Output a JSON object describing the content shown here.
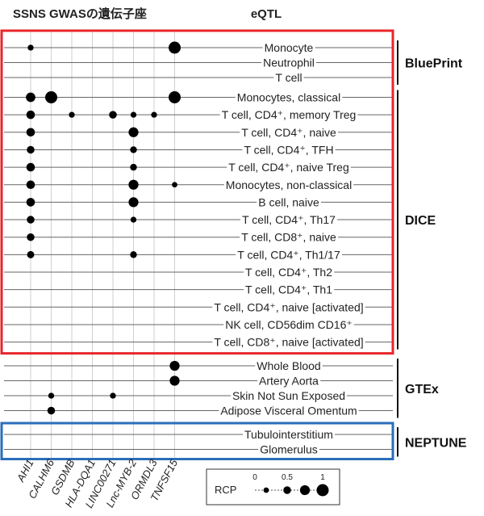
{
  "header": {
    "left_title": "SSNS GWASの遺伝子座",
    "right_title": "eQTL"
  },
  "chart_data": {
    "type": "dot-matrix",
    "genes": [
      "AHI1",
      "CALHM6",
      "GSDMB",
      "HLA-DQA1",
      "LINC00271",
      "Lnc-MYB-2",
      "ORMDL3",
      "TNFSF15"
    ],
    "groups": [
      {
        "name": "BluePrint",
        "rows": [
          {
            "label": "Monocyte",
            "values": [
              0.3,
              0,
              0,
              0,
              0,
              0,
              0,
              1.0
            ]
          },
          {
            "label": "Neutrophil",
            "values": [
              0,
              0,
              0,
              0,
              0,
              0,
              0,
              0
            ]
          },
          {
            "label": "T cell",
            "values": [
              0,
              0,
              0,
              0,
              0,
              0,
              0,
              0
            ]
          }
        ]
      },
      {
        "name": "DICE",
        "rows": [
          {
            "label": "Monocytes, classical",
            "values": [
              0.7,
              1.0,
              0,
              0,
              0,
              0,
              0,
              1.0
            ]
          },
          {
            "label": "T cell, CD4⁺, memory Treg",
            "values": [
              0.6,
              0,
              0.3,
              0,
              0.5,
              0.3,
              0.3,
              0
            ]
          },
          {
            "label": "T cell, CD4⁺, naive",
            "values": [
              0.6,
              0,
              0,
              0,
              0,
              0.75,
              0,
              0
            ]
          },
          {
            "label": "T cell, CD4⁺, TFH",
            "values": [
              0.5,
              0,
              0,
              0,
              0,
              0.4,
              0,
              0
            ]
          },
          {
            "label": "T cell, CD4⁺, naive Treg",
            "values": [
              0.6,
              0,
              0,
              0,
              0,
              0.4,
              0,
              0
            ]
          },
          {
            "label": "Monocytes, non-classical",
            "values": [
              0.6,
              0,
              0,
              0,
              0,
              0.75,
              0,
              0.25
            ]
          },
          {
            "label": "B cell, naive",
            "values": [
              0.6,
              0,
              0,
              0,
              0,
              0.75,
              0,
              0
            ]
          },
          {
            "label": "T cell, CD4⁺, Th17",
            "values": [
              0.5,
              0,
              0,
              0,
              0,
              0.3,
              0,
              0
            ]
          },
          {
            "label": "T cell, CD8⁺, naive",
            "values": [
              0.5,
              0,
              0,
              0,
              0,
              0,
              0,
              0
            ]
          },
          {
            "label": "T cell, CD4⁺, Th1/17",
            "values": [
              0.45,
              0,
              0,
              0,
              0,
              0.4,
              0,
              0
            ]
          },
          {
            "label": "T cell, CD4⁺, Th2",
            "values": [
              0,
              0,
              0,
              0,
              0,
              0,
              0,
              0
            ]
          },
          {
            "label": "T cell, CD4⁺, Th1",
            "values": [
              0,
              0,
              0,
              0,
              0,
              0,
              0,
              0
            ]
          },
          {
            "label": "T cell, CD4⁺, naive [activated]",
            "values": [
              0,
              0,
              0,
              0,
              0,
              0,
              0,
              0
            ]
          },
          {
            "label": "NK cell, CD56dim CD16⁺",
            "values": [
              0,
              0,
              0,
              0,
              0,
              0,
              0,
              0
            ]
          },
          {
            "label": "T cell, CD8⁺, naive [activated]",
            "values": [
              0,
              0,
              0,
              0,
              0,
              0,
              0,
              0
            ]
          }
        ]
      },
      {
        "name": "GTEx",
        "rows": [
          {
            "label": "Whole Blood",
            "values": [
              0,
              0,
              0,
              0,
              0,
              0,
              0,
              0.75
            ]
          },
          {
            "label": "Artery Aorta",
            "values": [
              0,
              0,
              0,
              0,
              0,
              0,
              0,
              0.75
            ]
          },
          {
            "label": "Skin Not Sun Exposed",
            "values": [
              0,
              0.3,
              0,
              0,
              0.3,
              0,
              0,
              0
            ]
          },
          {
            "label": "Adipose Visceral Omentum",
            "values": [
              0,
              0.5,
              0,
              0,
              0,
              0,
              0,
              0
            ]
          }
        ]
      },
      {
        "name": "NEPTUNE",
        "rows": [
          {
            "label": "Tubulointerstitium",
            "values": [
              0,
              0,
              0,
              0,
              0,
              0,
              0,
              0
            ]
          },
          {
            "label": "Glomerulus",
            "values": [
              0,
              0,
              0,
              0,
              0,
              0,
              0,
              0
            ]
          }
        ]
      }
    ],
    "legend": {
      "title": "RCP",
      "tick_labels": [
        "0",
        "0.5",
        "1"
      ],
      "values": [
        0.25,
        0.5,
        0.75,
        1.0
      ]
    },
    "colors": {
      "dot": "#000000",
      "red_box": "#e8262b",
      "blue_box": "#2a6ebb",
      "grid": "#cfcfcf"
    }
  }
}
